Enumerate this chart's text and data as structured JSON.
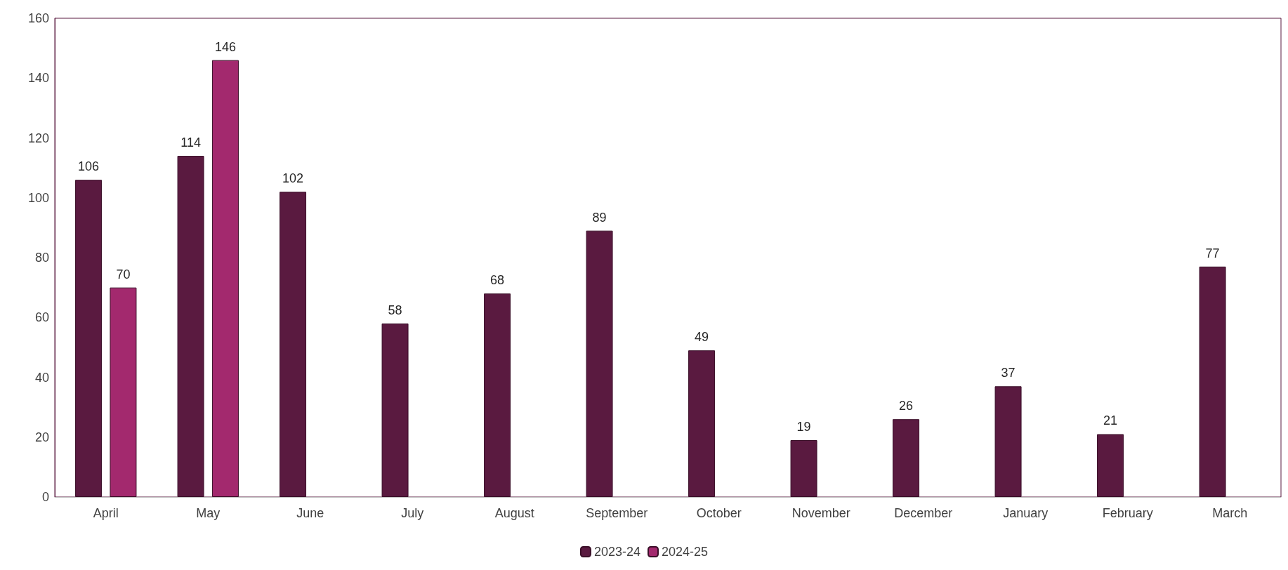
{
  "chart_data": {
    "type": "bar",
    "categories": [
      "April",
      "May",
      "June",
      "July",
      "August",
      "September",
      "October",
      "November",
      "December",
      "January",
      "February",
      "March"
    ],
    "series": [
      {
        "name": "2023-24",
        "color": "#5a1a40",
        "values": [
          106,
          114,
          102,
          58,
          68,
          89,
          49,
          19,
          26,
          37,
          21,
          77
        ]
      },
      {
        "name": "2024-25",
        "color": "#a3296e",
        "values": [
          70,
          146,
          null,
          null,
          null,
          null,
          null,
          null,
          null,
          null,
          null,
          null
        ]
      }
    ],
    "ylim": [
      0,
      160
    ],
    "yticks": [
      0,
      20,
      40,
      60,
      80,
      100,
      120,
      140,
      160
    ],
    "grid": false,
    "legend": "bottom",
    "data_labels": true
  }
}
